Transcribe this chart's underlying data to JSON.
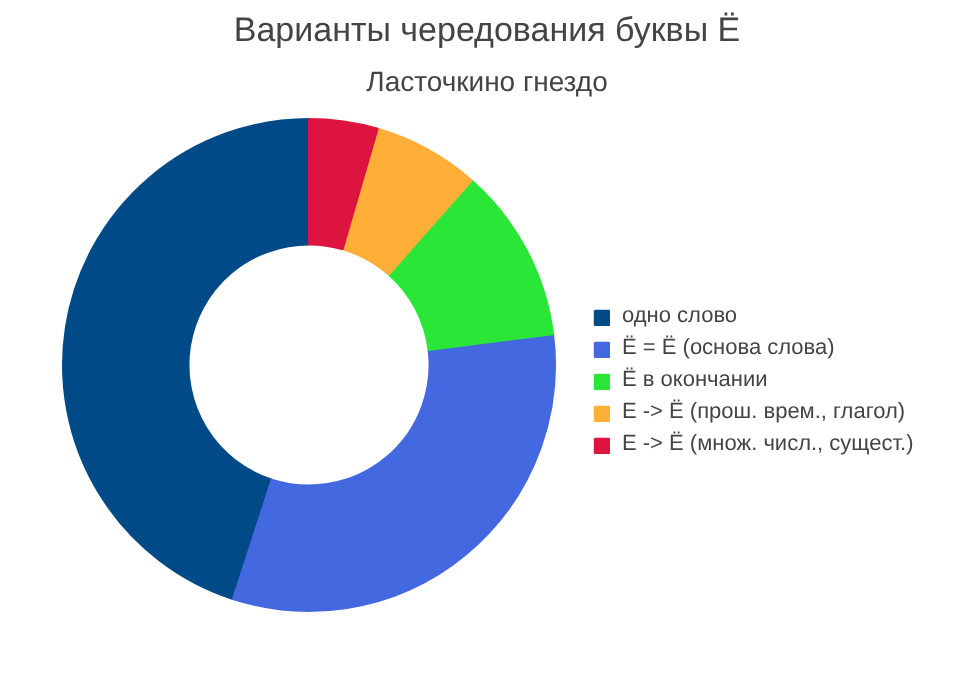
{
  "chart_data": {
    "type": "donut",
    "title": "Варианты чередования буквы Ё",
    "subtitle": "Ласточкино гнездо",
    "categories": [
      "одно слово",
      "Ё = Ё (основа слова)",
      "Ё в окончании",
      "Е -> Ё (прош. врем., глагол)",
      "Е -> Ё (множ. числ., сущест.)"
    ],
    "values": [
      45,
      32,
      11.5,
      7,
      4.5
    ],
    "colors": [
      "#004b87",
      "#4468e0",
      "#2ae637",
      "#ffae38",
      "#dd1440"
    ],
    "legend": "right"
  }
}
